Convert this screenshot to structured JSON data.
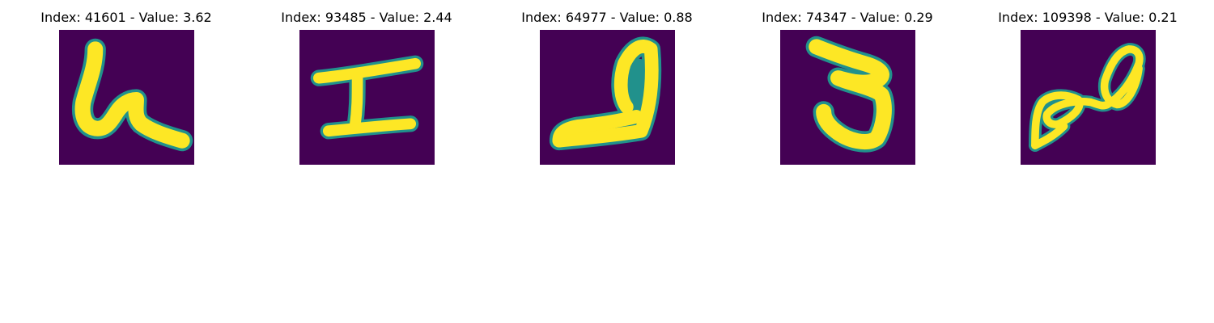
{
  "colors": {
    "background": "#440154",
    "foreground": "#fde725",
    "edge": "#21918c",
    "mid": "#5ec962"
  },
  "panels": [
    {
      "title": "Index: 41601 - Value: 3.62",
      "glyph": "handwritten-h-like-digit"
    },
    {
      "title": "Index: 93485 - Value: 2.44",
      "glyph": "handwritten-i-like-digit"
    },
    {
      "title": "Index: 64977 - Value: 0.88",
      "glyph": "handwritten-d-like-digit"
    },
    {
      "title": "Index: 74347 - Value: 0.29",
      "glyph": "handwritten-5-like-digit"
    },
    {
      "title": "Index: 109398 - Value: 0.21",
      "glyph": "handwritten-infinity-like-digit"
    }
  ]
}
